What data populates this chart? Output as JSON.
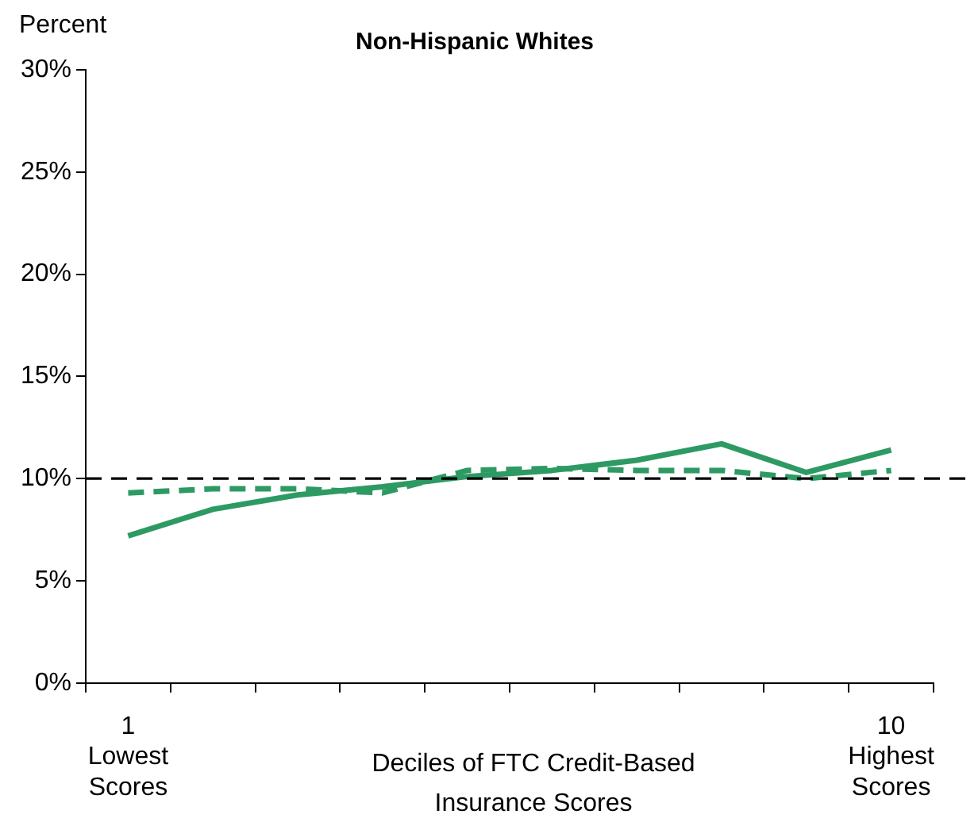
{
  "chart_data": {
    "type": "line",
    "title": "Non-Hispanic Whites",
    "ylabel": "Percent",
    "xlabel": "Deciles of FTC Credit-Based\nInsurance Scores",
    "categories": [
      "1\nLowest\nScores",
      null,
      null,
      null,
      null,
      null,
      null,
      null,
      null,
      "10\nHighest\nScores"
    ],
    "series": [
      {
        "color": "#2e9a63",
        "line_style": "solid",
        "values": [
          7.2,
          8.5,
          9.2,
          9.6,
          10.1,
          10.4,
          10.9,
          11.7,
          10.3,
          11.4
        ]
      },
      {
        "color": "#2e9a63",
        "line_style": "dashed",
        "values": [
          9.3,
          9.5,
          9.5,
          9.3,
          10.4,
          10.5,
          10.4,
          10.4,
          10.0,
          10.4
        ]
      }
    ],
    "ylim": [
      0,
      30
    ],
    "yticks": [
      {
        "value": 0,
        "label": "0%"
      },
      {
        "value": 5,
        "label": "5%"
      },
      {
        "value": 10,
        "label": "10%"
      },
      {
        "value": 15,
        "label": "15%"
      },
      {
        "value": 20,
        "label": "20%"
      },
      {
        "value": 25,
        "label": "25%"
      },
      {
        "value": 30,
        "label": "30%"
      }
    ],
    "ref_lines": [
      {
        "axis": "y",
        "value": 10,
        "color": "#000000",
        "line_style": "dashed"
      }
    ],
    "grid": false,
    "legend": false,
    "marker": "none"
  }
}
